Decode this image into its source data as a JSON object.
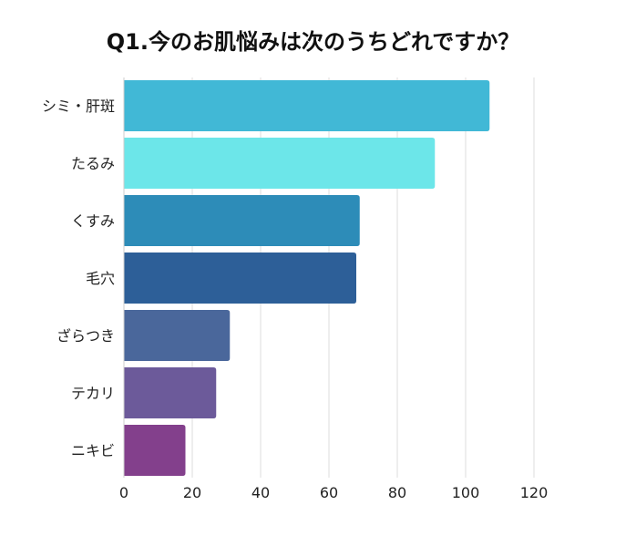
{
  "chart_data": {
    "type": "bar",
    "orientation": "horizontal",
    "title": "Q1.今のお肌悩みは次のうちどれですか？",
    "xlabel": "",
    "ylabel": "",
    "categories": [
      "シミ・肝斑",
      "たるみ",
      "くすみ",
      "毛穴",
      "ざらつき",
      "テカリ",
      "ニキビ"
    ],
    "values": [
      107,
      91,
      69,
      68,
      31,
      27,
      18
    ],
    "colors": [
      "#41b8d6",
      "#6ce6e9",
      "#2d8cb8",
      "#2d5f98",
      "#4a679b",
      "#6c5a9a",
      "#83408c"
    ],
    "xlim": [
      0,
      120
    ],
    "xticks": [
      "0",
      "20",
      "40",
      "60",
      "80",
      "100",
      "120"
    ],
    "grid": true,
    "legend": "none"
  }
}
